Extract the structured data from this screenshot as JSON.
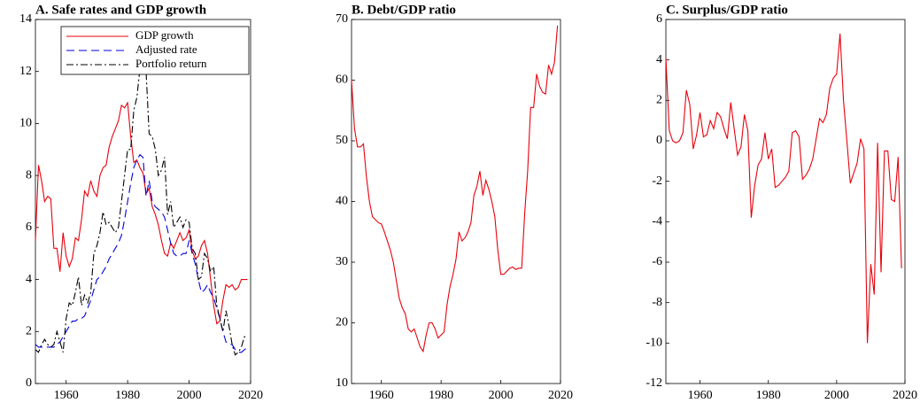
{
  "chart_data": [
    {
      "type": "line",
      "title": "A. Safe rates and GDP growth",
      "x": [
        1950,
        1951,
        1952,
        1953,
        1954,
        1955,
        1956,
        1957,
        1958,
        1959,
        1960,
        1961,
        1962,
        1963,
        1964,
        1965,
        1966,
        1967,
        1968,
        1969,
        1970,
        1971,
        1972,
        1973,
        1974,
        1975,
        1976,
        1977,
        1978,
        1979,
        1980,
        1981,
        1982,
        1983,
        1984,
        1985,
        1986,
        1987,
        1988,
        1989,
        1990,
        1991,
        1992,
        1993,
        1994,
        1995,
        1996,
        1997,
        1998,
        1999,
        2000,
        2001,
        2002,
        2003,
        2004,
        2005,
        2006,
        2007,
        2008,
        2009,
        2010,
        2011,
        2012,
        2013,
        2014,
        2015,
        2016,
        2017,
        2018,
        2019
      ],
      "xlim": [
        1950,
        2020
      ],
      "xticks": [
        1960,
        1980,
        2000,
        2020
      ],
      "ylim": [
        0,
        14
      ],
      "yticks": [
        0,
        2,
        4,
        6,
        8,
        10,
        12,
        14
      ],
      "legend": "upper right",
      "series": [
        {
          "name": "GDP growth",
          "color": "#e8000b",
          "dash": "solid",
          "values": [
            5.5,
            8.4,
            7.8,
            7.0,
            7.2,
            7.1,
            5.2,
            5.2,
            4.3,
            5.8,
            4.9,
            4.5,
            4.8,
            5.6,
            5.5,
            6.3,
            7.4,
            7.2,
            7.8,
            7.4,
            7.2,
            8.0,
            8.3,
            8.4,
            9.1,
            9.5,
            9.8,
            10.1,
            10.7,
            10.6,
            10.8,
            9.5,
            8.5,
            8.6,
            8.3,
            8.1,
            7.3,
            7.5,
            6.8,
            6.5,
            6.1,
            5.5,
            5.0,
            4.9,
            5.4,
            5.2,
            5.5,
            5.8,
            5.5,
            5.6,
            5.9,
            5.1,
            4.8,
            4.9,
            5.3,
            5.5,
            5.0,
            4.0,
            3.0,
            2.3,
            2.4,
            3.2,
            3.8,
            3.7,
            3.8,
            3.6,
            3.7,
            4.0,
            4.0,
            4.0
          ]
        },
        {
          "name": "Adjusted rate",
          "color": "#0000e0",
          "dash": "dashed",
          "values": [
            1.5,
            1.4,
            1.4,
            1.4,
            1.4,
            1.4,
            1.4,
            1.5,
            1.6,
            1.8,
            2.0,
            2.2,
            2.4,
            2.4,
            2.5,
            2.5,
            2.6,
            2.9,
            3.2,
            3.6,
            4.0,
            4.1,
            4.3,
            4.5,
            4.8,
            5.0,
            5.2,
            5.4,
            5.7,
            6.3,
            7.0,
            7.7,
            8.3,
            8.6,
            8.8,
            8.7,
            7.2,
            7.8,
            7.0,
            6.8,
            6.7,
            6.6,
            6.4,
            5.9,
            5.4,
            5.0,
            4.9,
            4.9,
            5.0,
            5.0,
            5.5,
            5.0,
            4.6,
            4.0,
            3.5,
            3.6,
            3.8,
            3.5,
            3.3,
            2.9,
            2.5,
            2.0,
            1.6,
            1.5,
            1.5,
            1.3,
            1.2,
            1.2,
            1.3,
            1.4
          ]
        },
        {
          "name": "Portfolio return",
          "color": "#000000",
          "dash": "dashdot",
          "values": [
            1.3,
            1.2,
            1.5,
            1.7,
            1.5,
            1.4,
            1.5,
            2.0,
            1.6,
            1.2,
            2.5,
            3.1,
            3.0,
            3.5,
            4.1,
            3.0,
            3.4,
            3.1,
            3.5,
            5.0,
            5.3,
            5.8,
            6.6,
            6.1,
            6.2,
            6.0,
            5.8,
            6.0,
            7.0,
            8.0,
            9.0,
            9.0,
            10.5,
            11.0,
            12.1,
            13.5,
            12.0,
            9.6,
            9.5,
            9.0,
            8.0,
            8.2,
            8.7,
            6.5,
            7.0,
            6.0,
            6.2,
            6.4,
            6.0,
            6.3,
            6.2,
            5.2,
            5.0,
            4.0,
            4.1,
            5.0,
            4.8,
            4.3,
            4.5,
            3.0,
            2.5,
            2.0,
            2.8,
            2.2,
            1.5,
            1.1,
            1.2,
            1.4,
            1.8,
            1.8
          ]
        }
      ]
    },
    {
      "type": "line",
      "title": "B. Debt/GDP ratio",
      "x": [
        1950,
        1951,
        1952,
        1953,
        1954,
        1955,
        1956,
        1957,
        1958,
        1959,
        1960,
        1961,
        1962,
        1963,
        1964,
        1965,
        1966,
        1967,
        1968,
        1969,
        1970,
        1971,
        1972,
        1973,
        1974,
        1975,
        1976,
        1977,
        1978,
        1979,
        1980,
        1981,
        1982,
        1983,
        1984,
        1985,
        1986,
        1987,
        1988,
        1989,
        1990,
        1991,
        1992,
        1993,
        1994,
        1995,
        1996,
        1997,
        1998,
        1999,
        2000,
        2001,
        2002,
        2003,
        2004,
        2005,
        2006,
        2007,
        2008,
        2009,
        2010,
        2011,
        2012,
        2013,
        2014,
        2015,
        2016,
        2017,
        2018,
        2019
      ],
      "xlim": [
        1950,
        2020
      ],
      "xticks": [
        1960,
        1980,
        2000,
        2020
      ],
      "ylim": [
        10,
        70
      ],
      "yticks": [
        10,
        20,
        30,
        40,
        50,
        60,
        70
      ],
      "series": [
        {
          "color": "#e8000b",
          "dash": "solid",
          "values": [
            60,
            52,
            49,
            49,
            49.5,
            44,
            40,
            37.5,
            37,
            36.5,
            36.3,
            35,
            33.5,
            32,
            30,
            27,
            24,
            22.5,
            21.5,
            19,
            18.5,
            19,
            17.5,
            16,
            15.3,
            18,
            20,
            20,
            19,
            17.5,
            18,
            18.5,
            23,
            26,
            28,
            30.5,
            35,
            33.5,
            34,
            35,
            36.5,
            41,
            42.5,
            45,
            41,
            43.5,
            42,
            40,
            37.5,
            32,
            28,
            28,
            28.5,
            29,
            29.2,
            28.8,
            29,
            29,
            38,
            45,
            55.5,
            55.5,
            61,
            59,
            58,
            57.7,
            62.5,
            61,
            63,
            69
          ]
        }
      ]
    },
    {
      "type": "line",
      "title": "C. Surplus/GDP ratio",
      "x": [
        1950,
        1951,
        1952,
        1953,
        1954,
        1955,
        1956,
        1957,
        1958,
        1959,
        1960,
        1961,
        1962,
        1963,
        1964,
        1965,
        1966,
        1967,
        1968,
        1969,
        1970,
        1971,
        1972,
        1973,
        1974,
        1975,
        1976,
        1977,
        1978,
        1979,
        1980,
        1981,
        1982,
        1983,
        1984,
        1985,
        1986,
        1987,
        1988,
        1989,
        1990,
        1991,
        1992,
        1993,
        1994,
        1995,
        1996,
        1997,
        1998,
        1999,
        2000,
        2001,
        2002,
        2003,
        2004,
        2005,
        2006,
        2007,
        2008,
        2009,
        2010,
        2011,
        2012,
        2013,
        2014,
        2015,
        2016,
        2017,
        2018,
        2019
      ],
      "xlim": [
        1950,
        2020
      ],
      "xticks": [
        1960,
        1980,
        2000,
        2020
      ],
      "ylim": [
        -12,
        6
      ],
      "yticks": [
        -12,
        -10,
        -8,
        -6,
        -4,
        -2,
        0,
        2,
        4,
        6
      ],
      "series": [
        {
          "color": "#e8000b",
          "dash": "solid",
          "values": [
            4.1,
            0.5,
            0,
            -0.1,
            0,
            0.4,
            2.5,
            1.8,
            -0.4,
            0.3,
            1.4,
            0.2,
            0.3,
            1.0,
            0.6,
            1.4,
            1.2,
            0.6,
            0.1,
            1.9,
            0.6,
            -0.7,
            -0.3,
            1.3,
            0.5,
            -3.8,
            -2.2,
            -1.2,
            -0.9,
            0.4,
            -0.9,
            -0.4,
            -2.3,
            -2.2,
            -2.0,
            -1.8,
            -1.5,
            0.4,
            0.5,
            0.2,
            -1.9,
            -1.7,
            -1.4,
            -0.9,
            0.1,
            1.1,
            0.9,
            1.3,
            2.6,
            3.1,
            3.3,
            5.3,
            2.0,
            0.0,
            -2.1,
            -1.6,
            -1.1,
            0.1,
            -0.4,
            -10.0,
            -6.1,
            -7.6,
            -0.1,
            -6.5,
            -0.5,
            -0.5,
            -2.9,
            -3.0,
            -0.8,
            -6.3
          ]
        }
      ]
    }
  ]
}
